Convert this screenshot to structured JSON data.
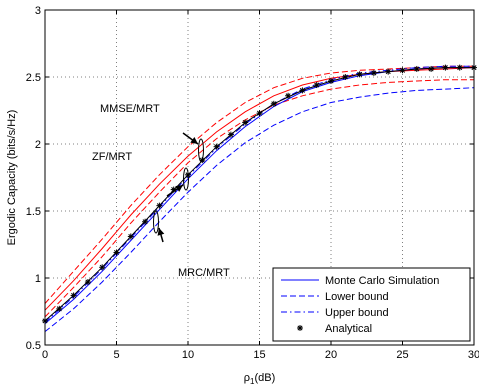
{
  "chart_data": {
    "type": "line",
    "xlabel": "ρ1(dB)",
    "ylabel": "Ergodic Capacity (bits/s/Hz)",
    "xlim": [
      0,
      30
    ],
    "ylim": [
      0.5,
      3
    ],
    "xticks": [
      0,
      5,
      10,
      15,
      20,
      25,
      30
    ],
    "yticks": [
      0.5,
      1,
      1.5,
      2,
      2.5,
      3
    ],
    "grid": true,
    "legend_position": "bottom-right",
    "legend": [
      {
        "label": "Monte Carlo Simulation",
        "style": "solid",
        "color": "#0000ff"
      },
      {
        "label": "Lower bound",
        "style": "dashed",
        "color": "#0000ff"
      },
      {
        "label": "Upper bound",
        "style": "dashdot",
        "color": "#0000ff"
      },
      {
        "label": "Analytical",
        "style": "marker",
        "color": "#000000"
      }
    ],
    "annotations": [
      {
        "text": "MMSE/MRT",
        "anchor_x": 10.7,
        "anchor_y": 1.95,
        "color": "#000000"
      },
      {
        "text": "ZF/MRT",
        "anchor_x": 9.0,
        "anchor_y": 1.6,
        "color": "#000000"
      },
      {
        "text": "MRC/MRT",
        "anchor_x": 7.6,
        "anchor_y": 1.39,
        "color": "#000000"
      }
    ],
    "x": [
      0,
      2,
      4,
      6,
      8,
      10,
      12,
      14,
      16,
      18,
      20,
      22,
      24,
      26,
      28,
      30
    ],
    "series": [
      {
        "group": "MMSE/MRT",
        "kind": "Monte Carlo Simulation",
        "style": "solid",
        "color": "#ff0000",
        "values": [
          0.76,
          0.98,
          1.22,
          1.47,
          1.7,
          1.91,
          2.09,
          2.24,
          2.36,
          2.44,
          2.49,
          2.52,
          2.54,
          2.55,
          2.56,
          2.57
        ]
      },
      {
        "group": "MMSE/MRT",
        "kind": "Upper bound",
        "style": "dashed",
        "color": "#ff0000",
        "values": [
          0.81,
          1.05,
          1.29,
          1.54,
          1.77,
          1.98,
          2.16,
          2.31,
          2.42,
          2.49,
          2.53,
          2.55,
          2.56,
          2.57,
          2.58,
          2.58
        ]
      },
      {
        "group": "MMSE/MRT",
        "kind": "Lower bound",
        "style": "dashed",
        "color": "#ff0000",
        "values": [
          0.71,
          0.93,
          1.16,
          1.41,
          1.64,
          1.86,
          2.04,
          2.18,
          2.29,
          2.36,
          2.41,
          2.44,
          2.46,
          2.47,
          2.48,
          2.48
        ]
      },
      {
        "group": "MRC/MRT",
        "kind": "Monte Carlo Simulation",
        "style": "solid",
        "color": "#0000ff",
        "values": [
          0.66,
          0.84,
          1.05,
          1.28,
          1.51,
          1.74,
          1.95,
          2.13,
          2.28,
          2.39,
          2.46,
          2.51,
          2.54,
          2.56,
          2.57,
          2.57
        ]
      },
      {
        "group": "MRC/MRT",
        "kind": "Lower bound",
        "style": "dashed",
        "color": "#0000ff",
        "values": [
          0.6,
          0.77,
          0.97,
          1.19,
          1.42,
          1.64,
          1.84,
          2.01,
          2.14,
          2.24,
          2.31,
          2.35,
          2.38,
          2.4,
          2.41,
          2.42
        ]
      },
      {
        "group": "MRC/MRT",
        "kind": "Upper bound",
        "style": "dashdot",
        "color": "#0000ff",
        "values": [
          0.67,
          0.86,
          1.07,
          1.3,
          1.53,
          1.76,
          1.97,
          2.15,
          2.3,
          2.41,
          2.48,
          2.53,
          2.55,
          2.57,
          2.58,
          2.58
        ]
      },
      {
        "group": "ZF/MRT",
        "kind": "Monte Carlo Simulation",
        "style": "solid",
        "color": "#000000",
        "values": [
          0.68,
          0.87,
          1.08,
          1.31,
          1.54,
          1.77,
          1.98,
          2.16,
          2.3,
          2.4,
          2.47,
          2.52,
          2.54,
          2.56,
          2.57,
          2.57
        ]
      }
    ],
    "analytical_x": [
      0,
      1,
      2,
      3,
      4,
      5,
      6,
      7,
      8,
      9,
      10,
      11,
      12,
      13,
      14,
      15,
      16,
      17,
      18,
      19,
      20,
      21,
      22,
      23,
      24,
      25,
      26,
      27,
      28,
      29,
      30
    ],
    "analytical_y": [
      0.68,
      0.77,
      0.87,
      0.97,
      1.08,
      1.19,
      1.31,
      1.42,
      1.54,
      1.66,
      1.77,
      1.88,
      1.98,
      2.07,
      2.16,
      2.23,
      2.3,
      2.36,
      2.4,
      2.44,
      2.47,
      2.5,
      2.52,
      2.53,
      2.54,
      2.55,
      2.56,
      2.56,
      2.57,
      2.57,
      2.57
    ]
  }
}
